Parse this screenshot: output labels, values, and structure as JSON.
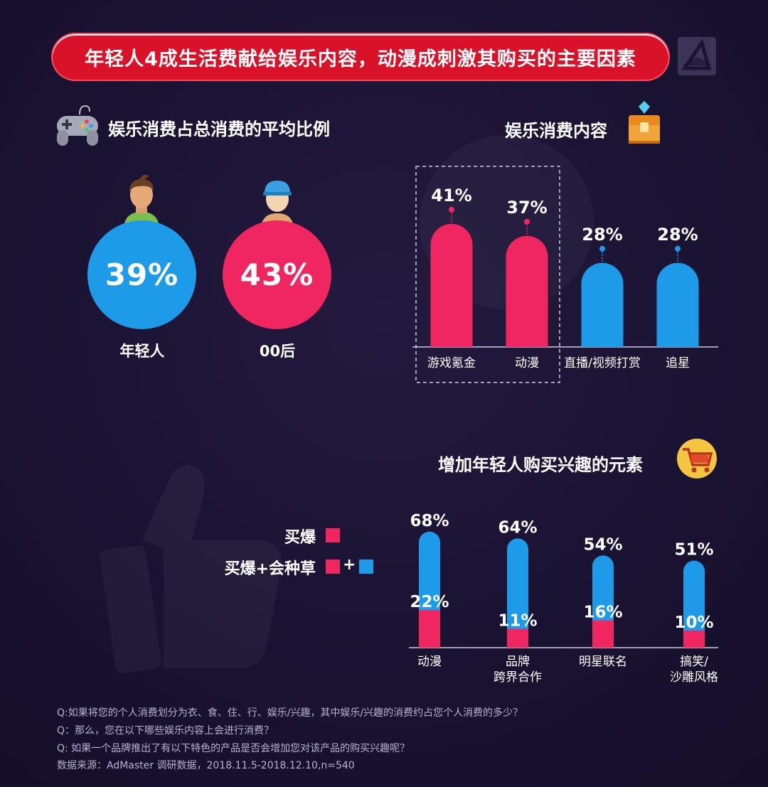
{
  "banner": {
    "title": "年轻人4成生活费献给娱乐内容，动漫成刺激其购买的主要因素"
  },
  "section1": {
    "title": "娱乐消费占总消费的平均比例",
    "groups": [
      {
        "label": "年轻人",
        "value_text": "39%",
        "color": "#1e9be8"
      },
      {
        "label": "00后",
        "value_text": "43%",
        "color": "#ef2660"
      }
    ]
  },
  "section2": {
    "title": "娱乐消费内容"
  },
  "section3": {
    "title": "增加年轻人购买兴趣的元素",
    "legend": [
      {
        "label": "买爆",
        "color": "#ef2660"
      },
      {
        "label": "买爆+会种草",
        "color": "#ef2660",
        "color2": "#1e9be8",
        "plus": "+"
      }
    ]
  },
  "colors": {
    "pink": "#ef2660",
    "blue": "#1e9be8",
    "banner": "#d9122a",
    "background": "#1b1333"
  },
  "chart_data": [
    {
      "type": "bar",
      "title": "娱乐消费内容",
      "categories": [
        "游戏氪金",
        "动漫",
        "直播/视频打赏",
        "追星"
      ],
      "values": [
        41,
        37,
        28,
        28
      ],
      "value_labels": [
        "41%",
        "37%",
        "28%",
        "28%"
      ],
      "colors": [
        "#ef2660",
        "#ef2660",
        "#1e9be8",
        "#1e9be8"
      ],
      "ylim": [
        0,
        45
      ],
      "highlight": [
        "游戏氪金",
        "动漫"
      ]
    },
    {
      "type": "bar",
      "title": "增加年轻人购买兴趣的元素",
      "categories": [
        [
          "动漫"
        ],
        [
          "品牌",
          "跨界合作"
        ],
        [
          "明星联名"
        ],
        [
          "搞笑/",
          "沙雕风格"
        ]
      ],
      "series": [
        {
          "name": "买爆",
          "values": [
            22,
            11,
            16,
            10
          ],
          "labels": [
            "22%",
            "11%",
            "16%",
            "10%"
          ],
          "color": "#ef2660"
        },
        {
          "name": "买爆+会种草",
          "values": [
            68,
            64,
            54,
            51
          ],
          "labels": [
            "68%",
            "64%",
            "54%",
            "51%"
          ],
          "color": "#1e9be8"
        }
      ],
      "ylim": [
        0,
        75
      ]
    }
  ],
  "footnotes": [
    "Q:如果将您的个人消费划分为衣、食、住、行、娱乐/兴趣，其中娱乐/兴趣的消费约占您个人消费的多少？",
    "Q：那么，您在以下哪些娱乐内容上会进行消费？",
    "Q: 如果一个品牌推出了有以下特色的产品是否会增加您对该产品的购买兴趣呢？",
    "数据来源：AdMaster 调研数据，2018.11.5-2018.12.10,n=540"
  ]
}
